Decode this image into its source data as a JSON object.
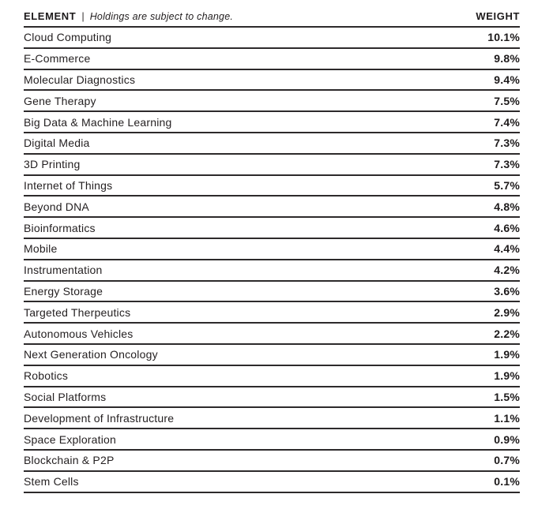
{
  "header": {
    "element_label": "ELEMENT",
    "separator": "|",
    "note": "Holdings are subject to change.",
    "weight_label": "WEIGHT"
  },
  "colors": {
    "text": "#231f20",
    "rule": "#2d2a2b",
    "background": "#ffffff"
  },
  "rows": [
    {
      "name": "Cloud Computing",
      "weight": "10.1%"
    },
    {
      "name": "E-Commerce",
      "weight": "9.8%"
    },
    {
      "name": "Molecular Diagnostics",
      "weight": "9.4%"
    },
    {
      "name": "Gene Therapy",
      "weight": "7.5%"
    },
    {
      "name": "Big Data & Machine Learning",
      "weight": "7.4%"
    },
    {
      "name": "Digital Media",
      "weight": "7.3%"
    },
    {
      "name": "3D Printing",
      "weight": "7.3%"
    },
    {
      "name": "Internet of Things",
      "weight": "5.7%"
    },
    {
      "name": "Beyond DNA",
      "weight": "4.8%"
    },
    {
      "name": "Bioinformatics",
      "weight": "4.6%"
    },
    {
      "name": "Mobile",
      "weight": "4.4%"
    },
    {
      "name": "Instrumentation",
      "weight": "4.2%"
    },
    {
      "name": "Energy Storage",
      "weight": "3.6%"
    },
    {
      "name": "Targeted Therpeutics",
      "weight": "2.9%"
    },
    {
      "name": "Autonomous Vehicles",
      "weight": "2.2%"
    },
    {
      "name": "Next Generation Oncology",
      "weight": "1.9%"
    },
    {
      "name": "Robotics",
      "weight": "1.9%"
    },
    {
      "name": "Social Platforms",
      "weight": "1.5%"
    },
    {
      "name": "Development of Infrastructure",
      "weight": "1.1%"
    },
    {
      "name": "Space Exploration",
      "weight": "0.9%"
    },
    {
      "name": "Blockchain & P2P",
      "weight": "0.7%"
    },
    {
      "name": "Stem Cells",
      "weight": "0.1%"
    }
  ],
  "chart_data": {
    "type": "table",
    "title": "ELEMENT | Holdings are subject to change.",
    "columns": [
      "ELEMENT",
      "WEIGHT"
    ],
    "categories": [
      "Cloud Computing",
      "E-Commerce",
      "Molecular Diagnostics",
      "Gene Therapy",
      "Big Data & Machine Learning",
      "Digital Media",
      "3D Printing",
      "Internet of Things",
      "Beyond DNA",
      "Bioinformatics",
      "Mobile",
      "Instrumentation",
      "Energy Storage",
      "Targeted Therpeutics",
      "Autonomous Vehicles",
      "Next Generation Oncology",
      "Robotics",
      "Social Platforms",
      "Development of Infrastructure",
      "Space Exploration",
      "Blockchain & P2P",
      "Stem Cells"
    ],
    "values": [
      10.1,
      9.8,
      9.4,
      7.5,
      7.4,
      7.3,
      7.3,
      5.7,
      4.8,
      4.6,
      4.4,
      4.2,
      3.6,
      2.9,
      2.2,
      1.9,
      1.9,
      1.5,
      1.1,
      0.9,
      0.7,
      0.1
    ],
    "value_unit": "%"
  }
}
